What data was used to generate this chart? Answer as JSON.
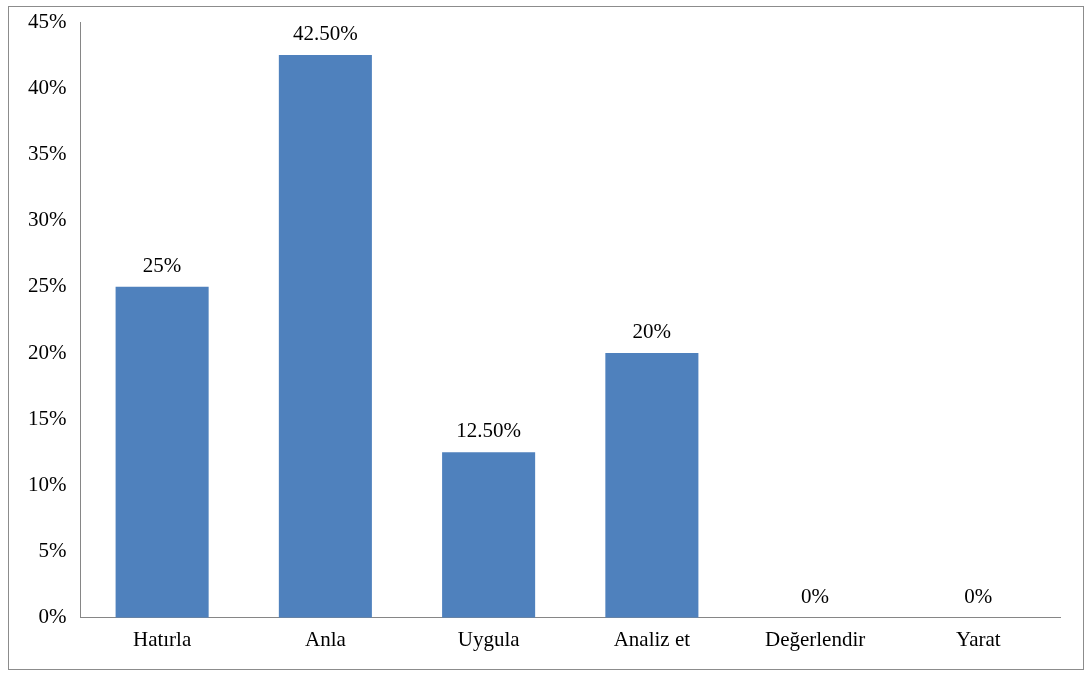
{
  "chart_data": {
    "type": "bar",
    "categories": [
      "Hatırla",
      "Anla",
      "Uygula",
      "Analiz et",
      "Değerlendir",
      "Yarat"
    ],
    "values": [
      25,
      42.5,
      12.5,
      20,
      0,
      0
    ],
    "value_labels": [
      "25%",
      "42.50%",
      "12.50%",
      "20%",
      "0%",
      "0%"
    ],
    "color": "#4f81bd",
    "ylim": [
      0,
      45
    ],
    "yticks": [
      {
        "value": 0,
        "label": "0%"
      },
      {
        "value": 5,
        "label": "5%"
      },
      {
        "value": 10,
        "label": "10%"
      },
      {
        "value": 15,
        "label": "15%"
      },
      {
        "value": 20,
        "label": "20%"
      },
      {
        "value": 25,
        "label": "25%"
      },
      {
        "value": 30,
        "label": "30%"
      },
      {
        "value": 35,
        "label": "35%"
      },
      {
        "value": 40,
        "label": "40%"
      },
      {
        "value": 45,
        "label": "45%"
      }
    ],
    "grid": false,
    "legend": false
  }
}
